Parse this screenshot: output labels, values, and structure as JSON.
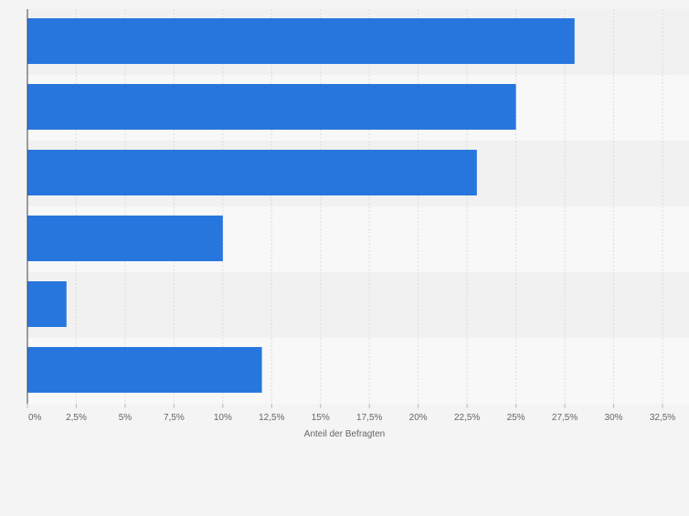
{
  "chart_data": {
    "type": "bar",
    "orientation": "horizontal",
    "categories": [
      "",
      "",
      "",
      "",
      "",
      ""
    ],
    "values": [
      28,
      25,
      23,
      10,
      2,
      12
    ],
    "title": "",
    "xlabel": "Anteil der Befragten",
    "ylabel": "",
    "xlim": [
      0,
      32.5
    ],
    "ticks": [
      0,
      2.5,
      5,
      7.5,
      10,
      12.5,
      15,
      17.5,
      20,
      22.5,
      25,
      27.5,
      30,
      32.5
    ],
    "tick_labels": [
      "0%",
      "2,5%",
      "5%",
      "7,5%",
      "10%",
      "12,5%",
      "15%",
      "17,5%",
      "20%",
      "22,5%",
      "25%",
      "27,5%",
      "30%",
      "32,5%"
    ],
    "grid": true,
    "legend": "none",
    "colors": {
      "bar": "#2776dd",
      "row_dark": "#f1f1f1",
      "row_light": "#f8f8f8",
      "grid": "#dcdcdc",
      "axis": "#444444",
      "tick_text": "#666666",
      "label_text": "#666666",
      "background": "#f4f4f4"
    }
  }
}
